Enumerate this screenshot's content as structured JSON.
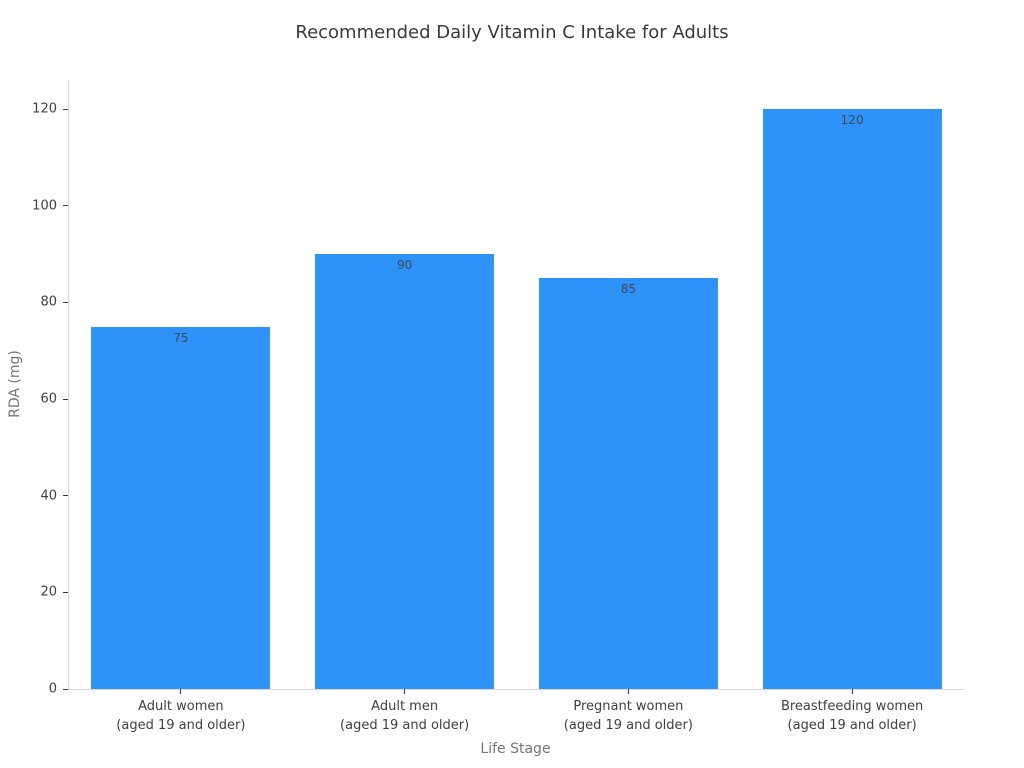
{
  "chart_data": {
    "type": "bar",
    "title": "Recommended Daily Vitamin C Intake for Adults",
    "xlabel": "Life Stage",
    "ylabel": "RDA (mg)",
    "categories": [
      "Adult women\n(aged 19 and older)",
      "Adult men\n(aged 19 and older)",
      "Pregnant women\n(aged 19 and older)",
      "Breastfeeding women\n(aged 19 and older)"
    ],
    "values": [
      75,
      90,
      85,
      120
    ],
    "bar_labels": [
      "75",
      "90",
      "85",
      "120"
    ],
    "yticks": [
      0,
      20,
      40,
      60,
      80,
      100,
      120
    ],
    "ylim": [
      0,
      126
    ],
    "bar_color": "#2e93f8",
    "bar_width_fraction": 0.8,
    "grid": false,
    "legend": null
  }
}
